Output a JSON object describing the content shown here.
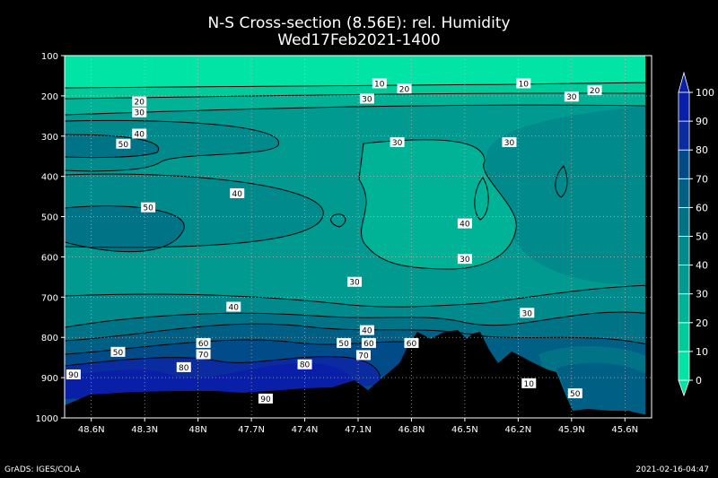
{
  "chart_data": {
    "type": "heatmap",
    "title": "N-S Cross-section (8.56E): rel. Humidity",
    "subtitle": "Wed17Feb2021-1400",
    "x_tick_labels": [
      "48.6N",
      "48.3N",
      "48N",
      "47.7N",
      "47.4N",
      "47.1N",
      "46.8N",
      "46.5N",
      "46.2N",
      "45.9N",
      "45.6N"
    ],
    "x_range_lat": [
      48.75,
      45.45
    ],
    "y_tick_labels": [
      "100",
      "200",
      "300",
      "400",
      "500",
      "600",
      "700",
      "800",
      "900",
      "1000"
    ],
    "y_range_hpa": [
      100,
      1000
    ],
    "grid": true,
    "colorbar": {
      "labels": [
        "0",
        "10",
        "20",
        "30",
        "40",
        "50",
        "60",
        "70",
        "80",
        "90",
        "100"
      ],
      "colors": [
        "#00e5a5",
        "#00cc9b",
        "#00b397",
        "#009a91",
        "#008a8c",
        "#007387",
        "#005f84",
        "#004b88",
        "#0b2ba0",
        "#0a1fa8"
      ]
    },
    "contour_labels": [
      {
        "text": "10",
        "lat": 46.98,
        "p": 170
      },
      {
        "text": "10",
        "lat": 46.17,
        "p": 170
      },
      {
        "text": "20",
        "lat": 48.33,
        "p": 215
      },
      {
        "text": "20",
        "lat": 46.84,
        "p": 183
      },
      {
        "text": "20",
        "lat": 45.77,
        "p": 187
      },
      {
        "text": "30",
        "lat": 48.33,
        "p": 242
      },
      {
        "text": "30",
        "lat": 47.05,
        "p": 208
      },
      {
        "text": "30",
        "lat": 45.9,
        "p": 203
      },
      {
        "text": "30",
        "lat": 46.88,
        "p": 316
      },
      {
        "text": "30",
        "lat": 46.25,
        "p": 316
      },
      {
        "text": "40",
        "lat": 48.33,
        "p": 295
      },
      {
        "text": "40",
        "lat": 47.78,
        "p": 443
      },
      {
        "text": "50",
        "lat": 48.42,
        "p": 320
      },
      {
        "text": "50",
        "lat": 48.28,
        "p": 478
      },
      {
        "text": "40",
        "lat": 46.5,
        "p": 518
      },
      {
        "text": "30",
        "lat": 46.5,
        "p": 606
      },
      {
        "text": "30",
        "lat": 47.12,
        "p": 663
      },
      {
        "text": "40",
        "lat": 47.8,
        "p": 725
      },
      {
        "text": "40",
        "lat": 47.05,
        "p": 783
      },
      {
        "text": "30",
        "lat": 46.15,
        "p": 740
      },
      {
        "text": "50",
        "lat": 48.45,
        "p": 837
      },
      {
        "text": "60",
        "lat": 47.97,
        "p": 815
      },
      {
        "text": "70",
        "lat": 47.97,
        "p": 843
      },
      {
        "text": "80",
        "lat": 48.08,
        "p": 875
      },
      {
        "text": "90",
        "lat": 48.7,
        "p": 893
      },
      {
        "text": "80",
        "lat": 47.4,
        "p": 868
      },
      {
        "text": "90",
        "lat": 47.62,
        "p": 953
      },
      {
        "text": "50",
        "lat": 47.18,
        "p": 815
      },
      {
        "text": "60",
        "lat": 47.04,
        "p": 815
      },
      {
        "text": "70",
        "lat": 47.07,
        "p": 845
      },
      {
        "text": "60",
        "lat": 46.8,
        "p": 815
      },
      {
        "text": "10",
        "lat": 46.14,
        "p": 915
      },
      {
        "text": "50",
        "lat": 45.88,
        "p": 940
      }
    ]
  },
  "footer": {
    "left": "GrADS: IGES/COLA",
    "right": "2021-02-16-04:47"
  }
}
